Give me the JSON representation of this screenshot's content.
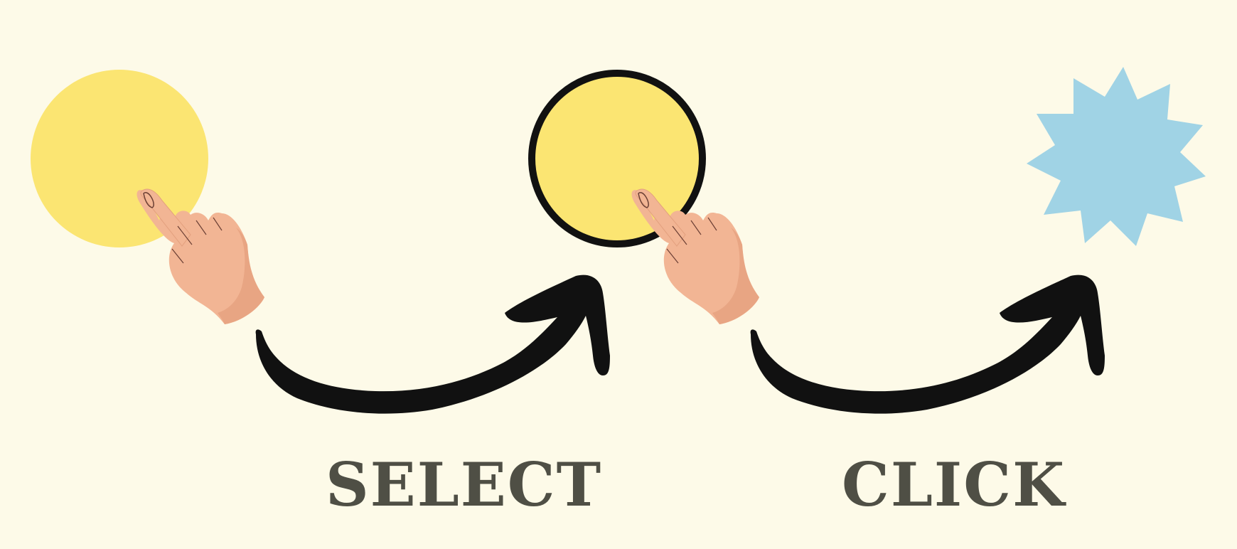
{
  "labels": {
    "step1": "SELECT",
    "step2": "CLICK"
  },
  "colors": {
    "background": "#fdfae8",
    "circle_fill": "#fbe572",
    "outline": "#111111",
    "star_fill": "#a0d3e5",
    "skin": "#f2b594",
    "skin_shadow": "#e8a583",
    "label_text": "#4f4f45"
  },
  "icons": {
    "hand": "pointing-hand-icon",
    "arrow": "curved-arrow-icon"
  }
}
